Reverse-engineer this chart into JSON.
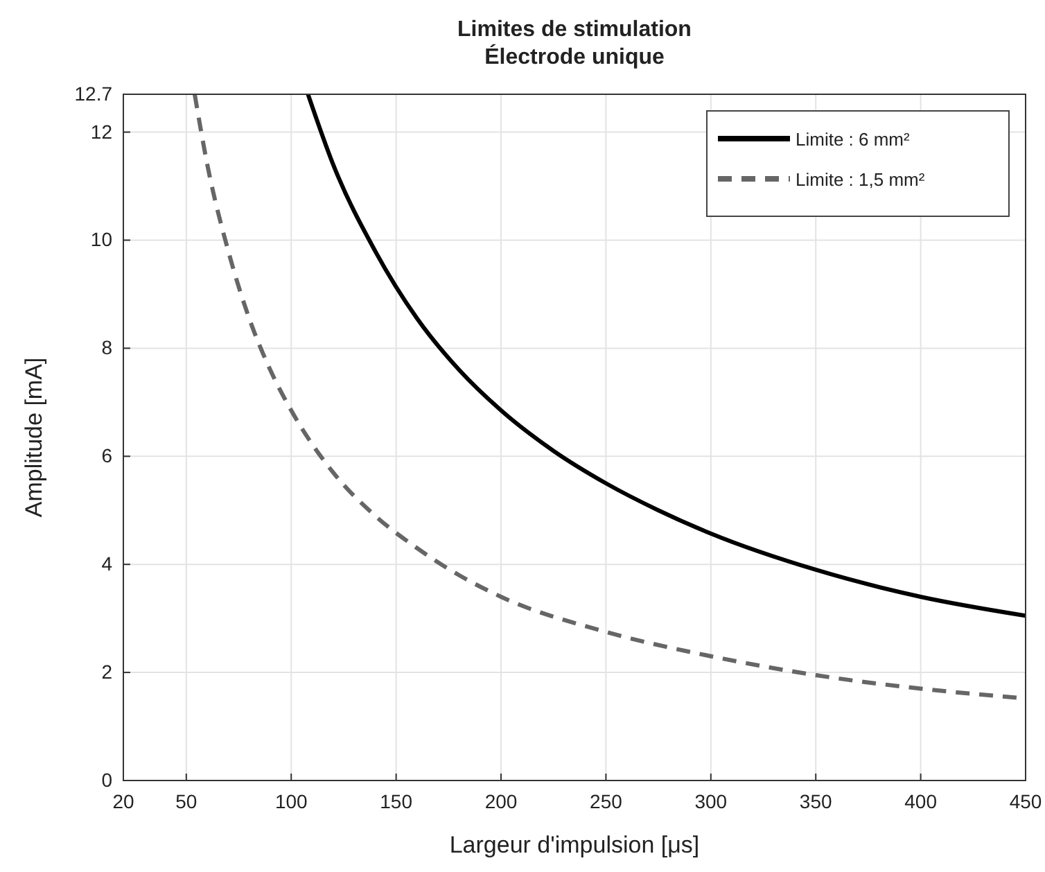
{
  "chart_data": {
    "type": "line",
    "title": "Limites de stimulation\nÉlectrode unique",
    "xlabel": "Largeur d'impulsion [μs]",
    "ylabel": "Amplitude [mA]",
    "xlim": [
      20,
      450
    ],
    "xticks": [
      20,
      50,
      100,
      150,
      200,
      250,
      300,
      350,
      400,
      450
    ],
    "ylim": [
      0,
      12.7
    ],
    "yticks": [
      0,
      2,
      4,
      6,
      8,
      10,
      12,
      12.7
    ],
    "grid": true,
    "legend": "top right",
    "series": [
      {
        "name": "Limite : 6 mm²",
        "color": "#000000",
        "line_style": "solid",
        "x": [
          108,
          120,
          140,
          160,
          180,
          200,
          225,
          250,
          275,
          300,
          350,
          400,
          450
        ],
        "values": [
          12.7,
          11.4,
          9.8,
          8.55,
          7.6,
          6.85,
          6.1,
          5.5,
          5.0,
          4.57,
          3.9,
          3.4,
          3.05
        ]
      },
      {
        "name": "Limite : 1,5 mm²",
        "color": "#666666",
        "line_style": "dashed",
        "x": [
          54,
          60,
          70,
          80,
          90,
          100,
          120,
          140,
          160,
          180,
          200,
          250,
          300,
          350,
          400,
          450
        ],
        "values": [
          12.7,
          11.4,
          9.8,
          8.55,
          7.6,
          6.85,
          5.7,
          4.9,
          4.3,
          3.8,
          3.4,
          2.75,
          2.3,
          1.95,
          1.7,
          1.52
        ]
      }
    ]
  }
}
